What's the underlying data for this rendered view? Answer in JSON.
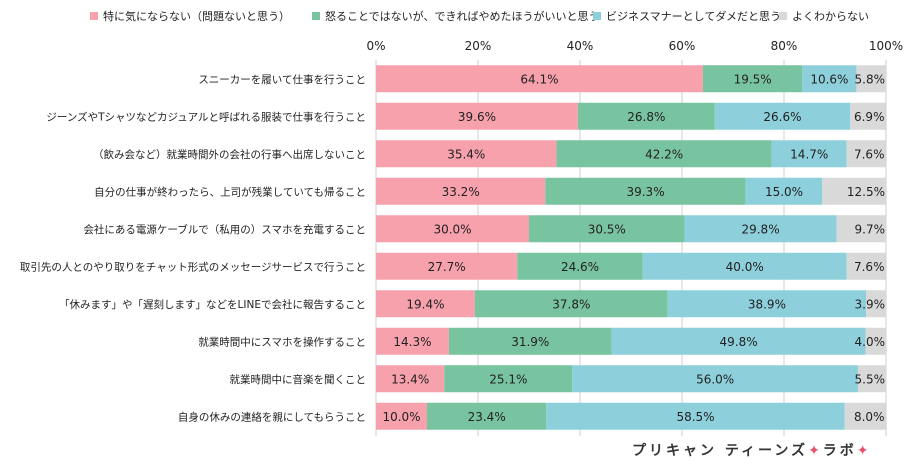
{
  "legend": [
    {
      "label": "特に気にならない（問題ないと思う）",
      "color": "#f7a1ad"
    },
    {
      "label": "怒ることではないが、できればやめたほうがいいと思う",
      "color": "#79c4a0"
    },
    {
      "label": "ビジネスマナーとしてダメだと思う",
      "color": "#8dd0dc"
    },
    {
      "label": "よくわからない",
      "color": "#d9d9d9"
    }
  ],
  "brand": {
    "part1": "プリキャン ティーンズ",
    "star1": "✦",
    "part2": "ラボ",
    "star2": "✦"
  },
  "chart_data": {
    "type": "bar",
    "orientation": "horizontal",
    "stacked": true,
    "xlim": [
      0,
      100
    ],
    "x_ticks": [
      "0%",
      "20%",
      "40%",
      "60%",
      "80%",
      "100%"
    ],
    "grid": true,
    "legend_position": "top",
    "categories": [
      "スニーカーを履いて仕事を行うこと",
      "ジーンズやTシャツなどカジュアルと呼ばれる服装で仕事を行うこと",
      "（飲み会など）就業時間外の会社の行事へ出席しないこと",
      "自分の仕事が終わったら、上司が残業していても帰ること",
      "会社にある電源ケーブルで（私用の）スマホを充電すること",
      "取引先の人とのやり取りをチャット形式のメッセージサービスで行うこと",
      "「休みます」や「遅刻します」などをLINEで会社に報告すること",
      "就業時間中にスマホを操作すること",
      "就業時間中に音楽を聞くこと",
      "自身の休みの連絡を親にしてもらうこと"
    ],
    "series": [
      {
        "name": "特に気にならない（問題ないと思う）",
        "color": "#f7a1ad",
        "values": [
          64.1,
          39.6,
          35.4,
          33.2,
          30.0,
          27.7,
          19.4,
          14.3,
          13.4,
          10.0
        ],
        "labels": [
          "64.1%",
          "39.6%",
          "35.4%",
          "33.2%",
          "30.0%",
          "27.7%",
          "19.4%",
          "14.3%",
          "13.4%",
          "10.0%"
        ]
      },
      {
        "name": "怒ることではないが、できればやめたほうがいいと思う",
        "color": "#79c4a0",
        "values": [
          19.5,
          26.8,
          42.2,
          39.3,
          30.5,
          24.6,
          37.8,
          31.9,
          25.1,
          23.4
        ],
        "labels": [
          "19.5%",
          "26.8%",
          "42.2%",
          "39.3%",
          "30.5%",
          "24.6%",
          "37.8%",
          "31.9%",
          "25.1%",
          "23.4%"
        ]
      },
      {
        "name": "ビジネスマナーとしてダメだと思う",
        "color": "#8dd0dc",
        "values": [
          10.6,
          26.6,
          14.7,
          15.0,
          29.8,
          40.0,
          38.9,
          49.8,
          56.0,
          58.5
        ],
        "labels": [
          "10.6%",
          "26.6%",
          "14.7%",
          "15.0%",
          "29.8%",
          "40.0%",
          "38.9%",
          "49.8%",
          "56.0%",
          "58.5%"
        ]
      },
      {
        "name": "よくわからない",
        "color": "#d9d9d9",
        "values": [
          5.8,
          6.9,
          7.6,
          12.5,
          9.7,
          7.6,
          3.9,
          4.0,
          5.5,
          8.0
        ],
        "labels": [
          "5.8%",
          "6.9%",
          "7.6%",
          "12.5%",
          "9.7%",
          "7.6%",
          "3.9%",
          "4.0%",
          "5.5%",
          "8.0%"
        ]
      }
    ]
  }
}
